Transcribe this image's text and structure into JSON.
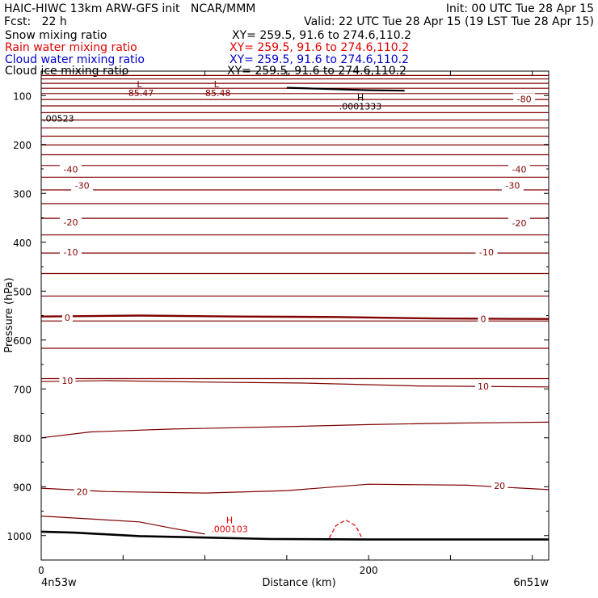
{
  "header": {
    "title_left": "HAIC-HIWC 13km ARW-GFS init   NCAR/MMM",
    "init": "Init: 00 UTC Tue 28 Apr 15",
    "fcst": "Fcst:   22 h",
    "valid": "Valid: 22 UTC Tue 28 Apr 15 (19 LST Tue 28 Apr 15)"
  },
  "legend": [
    {
      "label": "Snow mixing ratio",
      "xy": "XY= 259.5, 91.6 to 274.6,110.2",
      "color": "#000000"
    },
    {
      "label": "Rain water mixing ratio",
      "xy": "XY= 259.5, 91.6 to 274.6,110.2",
      "color": "#e00000"
    },
    {
      "label": "Cloud water mixing ratio",
      "xy": "XY= 259.5, 91.6 to 274.6,110.2",
      "color": "#0000c8"
    },
    {
      "label": "Cloud ice mixing ratio",
      "xy": "XY= 259.5, 91.6 to 274.6,110.2",
      "color": "#000000"
    }
  ],
  "chart_data": {
    "type": "line",
    "xlabel": "Distance (km)",
    "ylabel": "Pressure (hPa)",
    "xlim": [
      0,
      310
    ],
    "ylim": [
      1050,
      50
    ],
    "x_ticks": [
      0,
      200
    ],
    "y_ticks": [
      100,
      200,
      300,
      400,
      500,
      600,
      700,
      800,
      900,
      1000
    ],
    "x_end_labels": {
      "left": "4n53w",
      "right": "6n51w"
    },
    "colors": {
      "temperature": "#800000",
      "rain": "#e00000",
      "ground": "#000000",
      "snow": "#000000"
    },
    "isotherm_pressures": [
      59,
      66,
      75,
      85,
      96,
      108,
      121,
      135,
      150,
      166,
      183,
      201,
      221,
      243,
      267,
      293,
      321,
      351,
      385,
      422,
      464,
      510,
      561,
      617,
      679,
      746,
      819,
      899,
      987
    ],
    "labeled_isotherms": [
      {
        "label": "-80",
        "x": 295,
        "p": 107
      },
      {
        "label": "-40",
        "x": 18,
        "p": 251
      },
      {
        "label": "-40",
        "x": 292,
        "p": 251
      },
      {
        "label": "-30",
        "x": 25,
        "p": 284
      },
      {
        "label": "-30",
        "x": 288,
        "p": 284
      },
      {
        "label": "-20",
        "x": 18,
        "p": 359
      },
      {
        "label": "-20",
        "x": 292,
        "p": 361
      },
      {
        "label": "-10",
        "x": 18,
        "p": 420
      },
      {
        "label": "-10",
        "x": 272,
        "p": 420
      },
      {
        "label": "0",
        "x": 16,
        "p": 554
      },
      {
        "label": "0",
        "x": 270,
        "p": 557
      },
      {
        "label": "10",
        "x": 16,
        "p": 683
      },
      {
        "label": "10",
        "x": 270,
        "p": 695
      },
      {
        "label": "20",
        "x": 25,
        "p": 910
      },
      {
        "label": "20",
        "x": 280,
        "p": 898
      }
    ],
    "freezing_level": {
      "x": [
        0,
        60,
        120,
        180,
        240,
        310
      ],
      "p": [
        552,
        550,
        552,
        553,
        556,
        557
      ]
    },
    "curved_isotherms": [
      {
        "x": [
          0,
          40,
          100,
          160,
          230,
          310
        ],
        "p": [
          685,
          683,
          686,
          688,
          694,
          696
        ]
      },
      {
        "x": [
          0,
          30,
          80,
          140,
          200,
          250,
          310
        ],
        "p": [
          800,
          788,
          782,
          778,
          773,
          770,
          768
        ]
      },
      {
        "x": [
          0,
          40,
          100,
          150,
          200,
          260,
          310
        ],
        "p": [
          903,
          910,
          913,
          908,
          895,
          897,
          906
        ]
      },
      {
        "x": [
          0,
          60,
          80,
          100
        ],
        "p": [
          960,
          972,
          985,
          997
        ]
      }
    ],
    "ground": {
      "x": [
        0,
        20,
        60,
        100,
        140,
        200,
        260,
        310
      ],
      "p": [
        992,
        994,
        1001,
        1004,
        1007,
        1008,
        1008,
        1008
      ]
    },
    "rain_contour": {
      "x": [
        176,
        180,
        186,
        192,
        196
      ],
      "p": [
        1005,
        980,
        968,
        980,
        1005
      ]
    },
    "snow_contour": {
      "x": [
        150,
        170,
        200,
        222
      ],
      "p": [
        84,
        86,
        89,
        90
      ]
    },
    "annotations": [
      {
        "mark": "L",
        "value": "-85.47",
        "x": 60,
        "p": 83,
        "color": "#800000"
      },
      {
        "mark": "L",
        "value": "-85.48",
        "x": 107,
        "p": 83,
        "color": "#800000"
      },
      {
        "mark": "H",
        "value": ".0001333",
        "x": 195,
        "p": 110,
        "color": "#000000"
      },
      {
        "mark": "",
        "value": ".00523",
        "x": 2,
        "p": 135,
        "color": "#000000"
      },
      {
        "mark": "H",
        "value": ".000103",
        "x": 115,
        "p": 975,
        "color": "#e00000"
      }
    ]
  }
}
